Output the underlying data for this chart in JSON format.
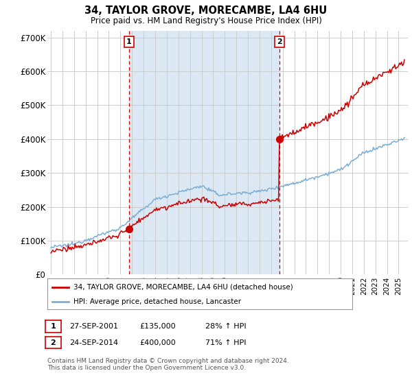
{
  "title": "34, TAYLOR GROVE, MORECAMBE, LA4 6HU",
  "subtitle": "Price paid vs. HM Land Registry's House Price Index (HPI)",
  "ylabel_ticks": [
    "£0",
    "£100K",
    "£200K",
    "£300K",
    "£400K",
    "£500K",
    "£600K",
    "£700K"
  ],
  "ytick_values": [
    0,
    100000,
    200000,
    300000,
    400000,
    500000,
    600000,
    700000
  ],
  "ylim": [
    0,
    720000
  ],
  "xlim_start": 1994.7,
  "xlim_end": 2025.8,
  "sale1_year": 2001.75,
  "sale1_price": 135000,
  "sale2_year": 2014.73,
  "sale2_price": 400000,
  "legend_red": "34, TAYLOR GROVE, MORECAMBE, LA4 6HU (detached house)",
  "legend_blue": "HPI: Average price, detached house, Lancaster",
  "annotation1_label": "1",
  "annotation1_date": "27-SEP-2001",
  "annotation1_price": "£135,000",
  "annotation1_hpi": "28% ↑ HPI",
  "annotation2_label": "2",
  "annotation2_date": "24-SEP-2014",
  "annotation2_price": "£400,000",
  "annotation2_hpi": "71% ↑ HPI",
  "footer": "Contains HM Land Registry data © Crown copyright and database right 2024.\nThis data is licensed under the Open Government Licence v3.0.",
  "red_color": "#cc0000",
  "blue_color": "#7aaed6",
  "shade_color": "#dce9f5",
  "dashed_color": "#cc0000",
  "plot_bg": "#ffffff",
  "grid_color": "#cccccc"
}
